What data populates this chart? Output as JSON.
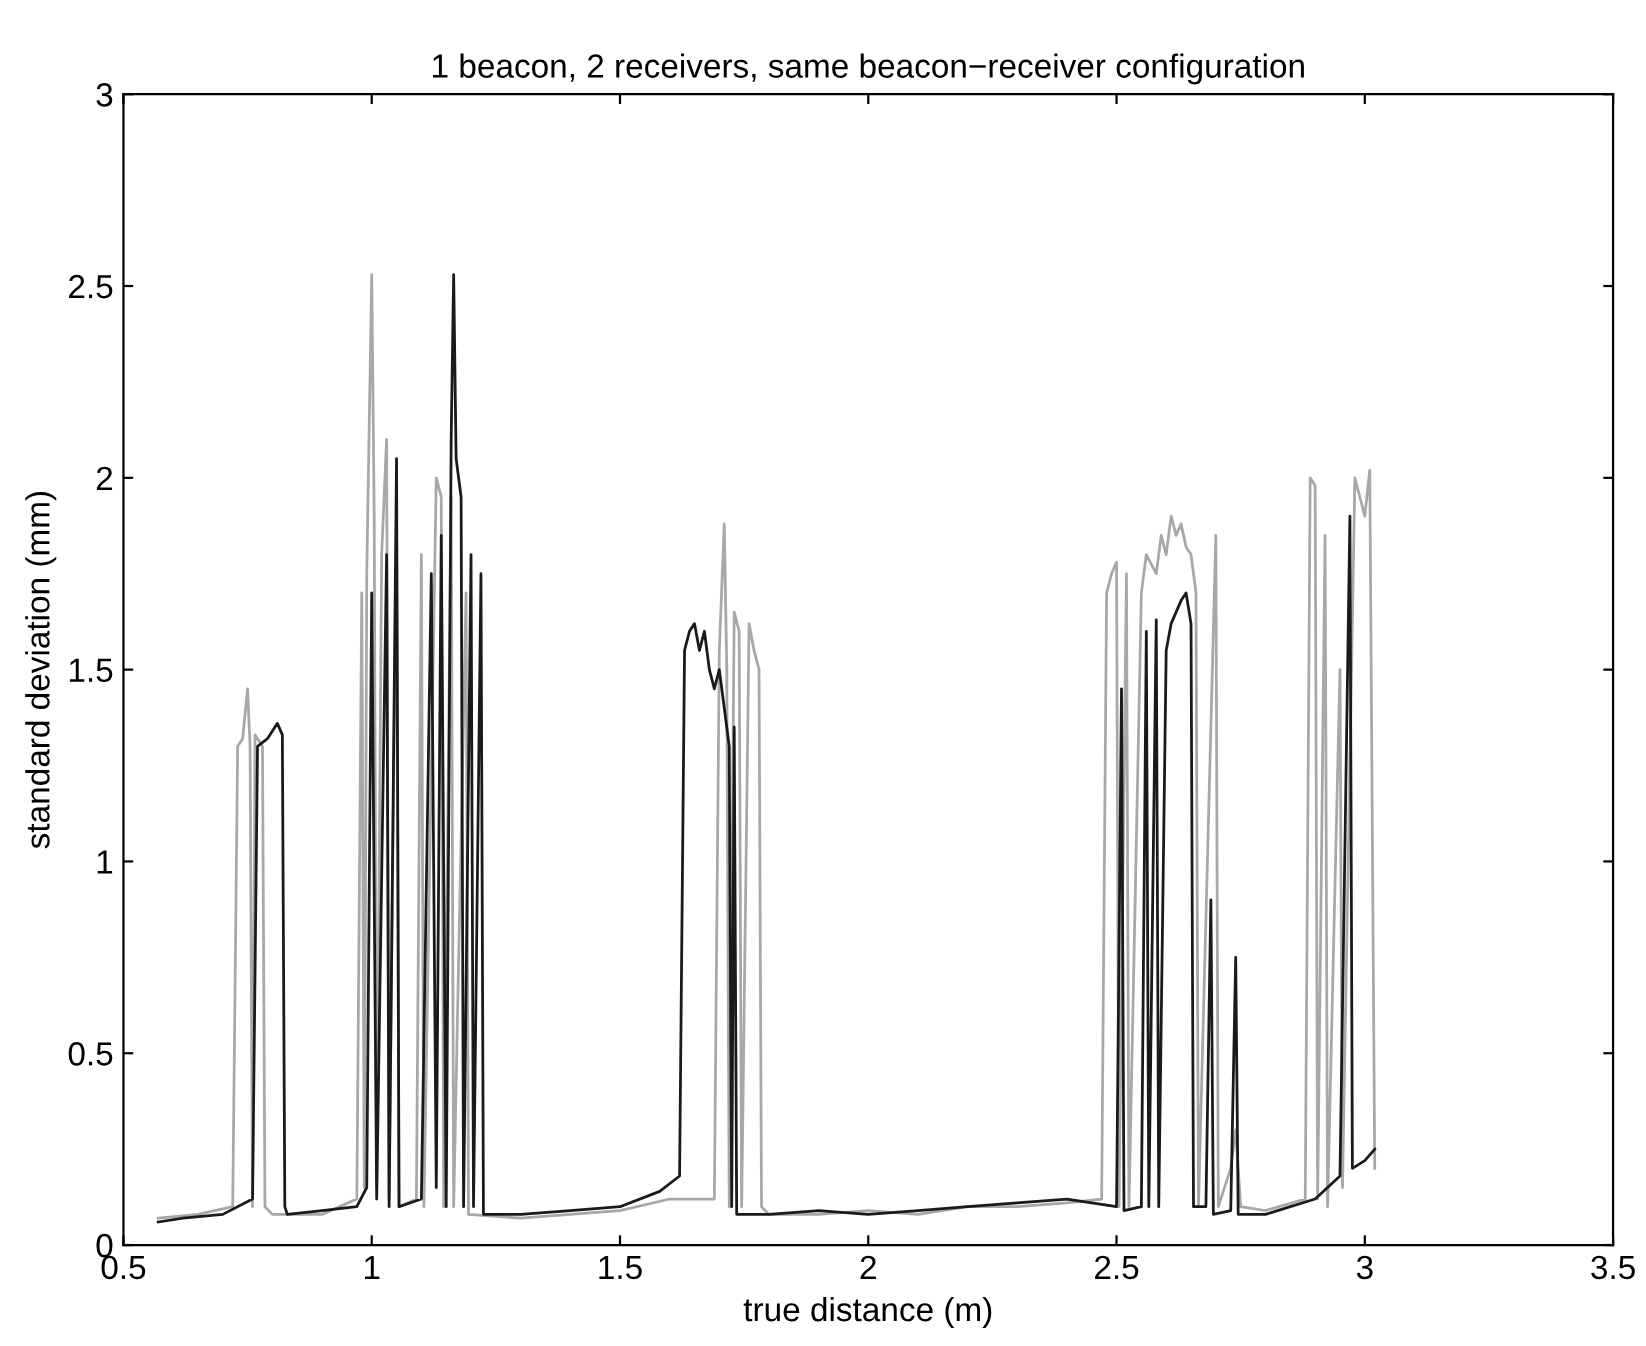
{
  "chart_data": {
    "type": "line",
    "title": "1 beacon, 2 receivers, same beacon−receiver configuration",
    "xlabel": "true distance (m)",
    "ylabel": "standard deviation (mm)",
    "xlim": [
      0.5,
      3.5
    ],
    "xticks": [
      0.5,
      1,
      1.5,
      2,
      2.5,
      3,
      3.5
    ],
    "ylim": [
      0,
      3
    ],
    "yticks": [
      0,
      0.5,
      1,
      1.5,
      2,
      2.5,
      3
    ],
    "marker": "none",
    "line_style": "solid",
    "series": [
      {
        "color": "#a8a8a8",
        "x": [
          0.57,
          0.65,
          0.72,
          0.73,
          0.74,
          0.75,
          0.755,
          0.76,
          0.765,
          0.78,
          0.785,
          0.8,
          0.9,
          0.97,
          0.98,
          0.985,
          0.99,
          1.0,
          1.005,
          1.01,
          1.02,
          1.03,
          1.035,
          1.05,
          1.055,
          1.09,
          1.1,
          1.105,
          1.13,
          1.14,
          1.145,
          1.16,
          1.165,
          1.19,
          1.195,
          1.3,
          1.4,
          1.5,
          1.6,
          1.65,
          1.69,
          1.7,
          1.71,
          1.715,
          1.72,
          1.73,
          1.74,
          1.745,
          1.76,
          1.77,
          1.78,
          1.785,
          1.8,
          1.9,
          2.0,
          2.1,
          2.2,
          2.3,
          2.4,
          2.47,
          2.48,
          2.49,
          2.5,
          2.505,
          2.52,
          2.525,
          2.55,
          2.56,
          2.58,
          2.59,
          2.6,
          2.61,
          2.62,
          2.63,
          2.64,
          2.65,
          2.66,
          2.665,
          2.7,
          2.705,
          2.73,
          2.74,
          2.75,
          2.8,
          2.88,
          2.89,
          2.9,
          2.905,
          2.92,
          2.925,
          2.95,
          2.955,
          2.98,
          2.99,
          3.0,
          3.01,
          3.02
        ],
        "values": [
          0.07,
          0.08,
          0.1,
          1.3,
          1.32,
          1.45,
          1.3,
          0.1,
          1.33,
          1.3,
          0.1,
          0.08,
          0.08,
          0.12,
          1.7,
          0.15,
          1.75,
          2.53,
          1.9,
          0.15,
          1.8,
          2.1,
          0.12,
          1.9,
          0.1,
          0.12,
          1.8,
          0.1,
          2.0,
          1.95,
          0.1,
          1.95,
          0.1,
          1.7,
          0.08,
          0.07,
          0.08,
          0.09,
          0.12,
          0.12,
          0.12,
          1.55,
          1.88,
          1.5,
          0.1,
          1.65,
          1.6,
          0.1,
          1.62,
          1.55,
          1.5,
          0.1,
          0.08,
          0.08,
          0.09,
          0.08,
          0.1,
          0.1,
          0.11,
          0.12,
          1.7,
          1.75,
          1.78,
          0.1,
          1.75,
          0.1,
          1.7,
          1.8,
          1.75,
          1.85,
          1.8,
          1.9,
          1.85,
          1.88,
          1.82,
          1.8,
          1.7,
          0.1,
          1.85,
          0.1,
          0.2,
          0.3,
          0.1,
          0.09,
          0.12,
          2.0,
          1.98,
          0.12,
          1.85,
          0.1,
          1.5,
          0.15,
          2.0,
          1.95,
          1.9,
          2.02,
          0.2
        ]
      },
      {
        "color": "#1a1a1a",
        "x": [
          0.57,
          0.62,
          0.7,
          0.76,
          0.77,
          0.79,
          0.81,
          0.82,
          0.825,
          0.83,
          0.9,
          0.97,
          0.99,
          1.0,
          1.01,
          1.03,
          1.035,
          1.05,
          1.055,
          1.1,
          1.12,
          1.13,
          1.14,
          1.15,
          1.16,
          1.165,
          1.17,
          1.18,
          1.185,
          1.2,
          1.205,
          1.22,
          1.225,
          1.3,
          1.4,
          1.5,
          1.58,
          1.62,
          1.63,
          1.64,
          1.65,
          1.66,
          1.67,
          1.68,
          1.69,
          1.7,
          1.71,
          1.72,
          1.725,
          1.73,
          1.735,
          1.8,
          1.9,
          2.0,
          2.1,
          2.2,
          2.3,
          2.4,
          2.5,
          2.51,
          2.515,
          2.55,
          2.56,
          2.565,
          2.58,
          2.585,
          2.6,
          2.61,
          2.62,
          2.63,
          2.64,
          2.65,
          2.655,
          2.68,
          2.69,
          2.695,
          2.73,
          2.74,
          2.745,
          2.8,
          2.85,
          2.9,
          2.95,
          2.97,
          2.975,
          3.0,
          3.02
        ],
        "values": [
          0.06,
          0.07,
          0.08,
          0.12,
          1.3,
          1.32,
          1.36,
          1.33,
          0.1,
          0.08,
          0.09,
          0.1,
          0.15,
          1.7,
          0.12,
          1.8,
          0.1,
          2.05,
          0.1,
          0.12,
          1.75,
          0.15,
          1.85,
          0.1,
          2.1,
          2.53,
          2.05,
          1.95,
          0.1,
          1.8,
          0.1,
          1.75,
          0.08,
          0.08,
          0.09,
          0.1,
          0.14,
          0.18,
          1.55,
          1.6,
          1.62,
          1.55,
          1.6,
          1.5,
          1.45,
          1.5,
          1.4,
          1.3,
          0.1,
          1.35,
          0.08,
          0.08,
          0.09,
          0.08,
          0.09,
          0.1,
          0.11,
          0.12,
          0.1,
          1.45,
          0.09,
          0.1,
          1.6,
          0.1,
          1.63,
          0.1,
          1.55,
          1.62,
          1.65,
          1.68,
          1.7,
          1.62,
          0.1,
          0.1,
          0.9,
          0.08,
          0.09,
          0.75,
          0.08,
          0.08,
          0.1,
          0.12,
          0.18,
          1.9,
          0.2,
          0.22,
          0.25
        ]
      }
    ]
  }
}
